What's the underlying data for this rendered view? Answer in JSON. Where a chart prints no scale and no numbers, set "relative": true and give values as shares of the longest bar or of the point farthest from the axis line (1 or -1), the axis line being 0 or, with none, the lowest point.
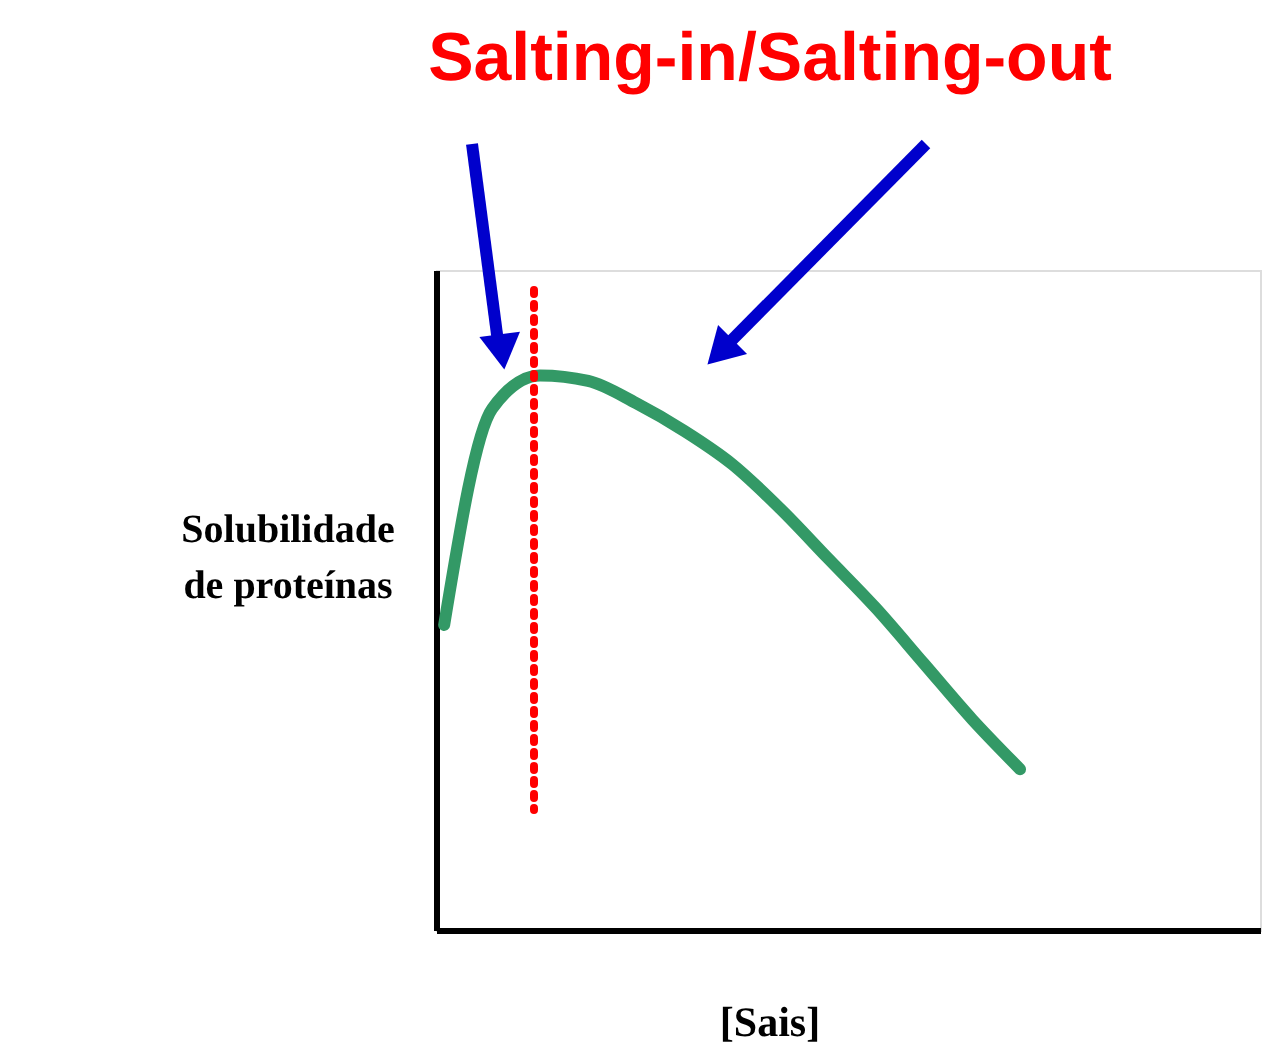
{
  "chart_data": {
    "type": "line",
    "title": "Salting-in/Salting-out",
    "xlabel": "[Sais]",
    "ylabel": "Solubilidade de proteínas",
    "relative": true,
    "tick_labels": false,
    "grid": false,
    "marker": "none",
    "line_style": "solid",
    "categories": [
      null,
      null,
      null,
      null,
      null,
      null,
      null,
      null,
      null,
      null,
      null,
      null,
      null
    ],
    "series": [
      {
        "color": "#339966",
        "values": [
          0.55,
          0.94,
          1.0,
          0.99,
          0.95,
          0.9,
          0.84,
          0.76,
          0.67,
          0.58,
          0.48,
          0.38,
          0.29
        ]
      }
    ]
  }
}
